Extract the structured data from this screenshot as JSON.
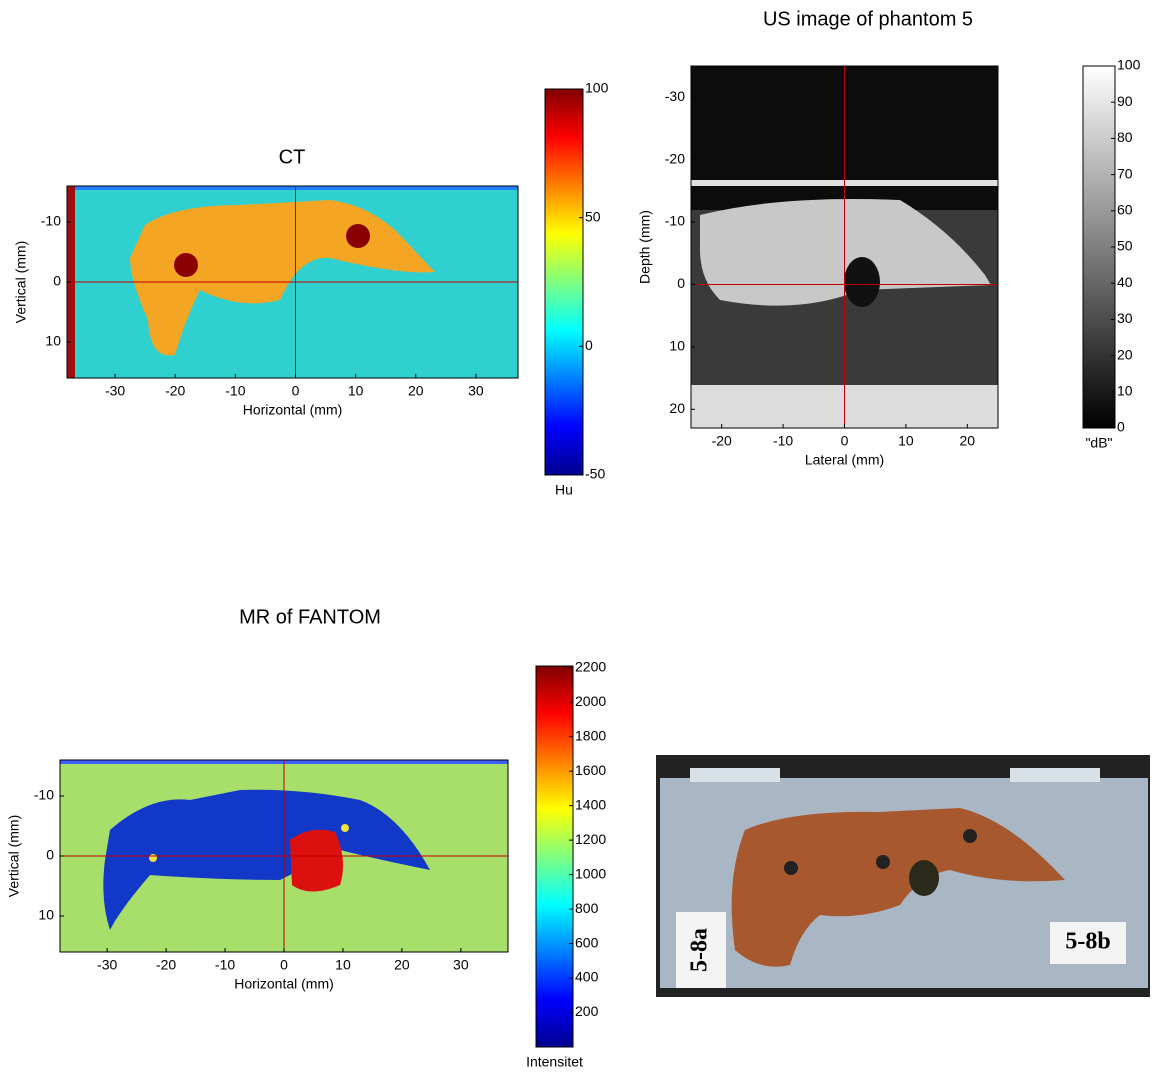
{
  "panels": [
    {
      "title": "CT",
      "xlabel": "Horizontal (mm)",
      "ylabel": "Vertical (mm)",
      "xlim": [
        -38,
        37
      ],
      "ylim": [
        -16,
        16
      ],
      "xticks": [
        -30,
        -20,
        -10,
        0,
        10,
        20,
        30
      ],
      "yticks": [
        -10,
        0,
        10
      ],
      "colorbar": {
        "label": "Hu",
        "lim": [
          -50,
          100
        ],
        "ticks": [
          -50,
          0,
          50,
          100
        ]
      }
    },
    {
      "title": "US image of phantom 5",
      "xlabel": "Lateral (mm)",
      "ylabel": "Depth (mm)",
      "xlim": [
        -25,
        25
      ],
      "ylim": [
        -35,
        23
      ],
      "xticks": [
        -20,
        -10,
        0,
        10,
        20
      ],
      "yticks": [
        -30,
        -20,
        -10,
        0,
        10,
        20
      ],
      "colorbar": {
        "label": "\"dB\"",
        "lim": [
          0,
          100
        ],
        "ticks": [
          0,
          10,
          20,
          30,
          40,
          50,
          60,
          70,
          80,
          90,
          100
        ]
      }
    },
    {
      "title": "MR of FANTOM",
      "xlabel": "Horizontal (mm)",
      "ylabel": "Vertical (mm)",
      "xlim": [
        -38,
        38
      ],
      "ylim": [
        -16,
        16
      ],
      "xticks": [
        -30,
        -20,
        -10,
        0,
        10,
        20,
        30
      ],
      "yticks": [
        -10,
        0,
        10
      ],
      "colorbar": {
        "label": "Intensitet",
        "lim": [
          0,
          2210
        ],
        "ticks": [
          200,
          400,
          600,
          800,
          1000,
          1200,
          1400,
          1600,
          1800,
          2000,
          2200
        ]
      }
    }
  ],
  "photo": {
    "labels": [
      "5-8a",
      "5-8b"
    ]
  }
}
